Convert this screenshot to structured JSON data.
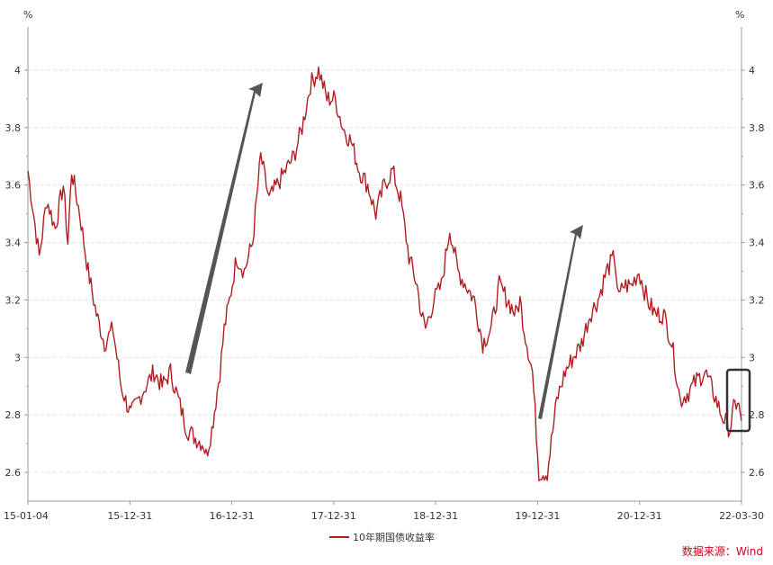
{
  "chart_data": {
    "type": "line",
    "unit_left": "%",
    "unit_right": "%",
    "x_tick_labels": [
      "15-01-04",
      "15-12-31",
      "16-12-31",
      "17-12-31",
      "18-12-31",
      "19-12-31",
      "20-12-31",
      "22-03-30"
    ],
    "y_ticks": [
      2.6,
      2.8,
      3,
      3.2,
      3.4,
      3.6,
      3.8,
      4
    ],
    "y_tick_labels": [
      "2.6",
      "2.8",
      "3",
      "3.2",
      "3.4",
      "3.6",
      "3.8",
      "4"
    ],
    "ylim": [
      2.5,
      4.15
    ],
    "grid": true,
    "legend_position": "bottom-center",
    "series": [
      {
        "name": "10年期国债收益率",
        "color": "#b01e23",
        "x": [
          "2015-01-04",
          "2015-02-15",
          "2015-03-15",
          "2015-04-15",
          "2015-05-15",
          "2015-06-01",
          "2015-06-15",
          "2015-07-15",
          "2015-08-15",
          "2015-09-15",
          "2015-10-15",
          "2015-11-15",
          "2015-12-15",
          "2016-01-01",
          "2016-01-20",
          "2016-02-15",
          "2016-03-15",
          "2016-04-15",
          "2016-05-15",
          "2016-06-15",
          "2016-07-15",
          "2016-08-15",
          "2016-09-15",
          "2016-10-15",
          "2016-10-25",
          "2016-11-15",
          "2016-12-15",
          "2016-12-31",
          "2017-01-20",
          "2017-02-15",
          "2017-03-15",
          "2017-04-15",
          "2017-05-15",
          "2017-06-15",
          "2017-07-15",
          "2017-08-15",
          "2017-09-15",
          "2017-10-15",
          "2017-11-15",
          "2017-12-15",
          "2017-12-31",
          "2018-01-15",
          "2018-02-15",
          "2018-03-15",
          "2018-04-15",
          "2018-05-15",
          "2018-06-15",
          "2018-07-15",
          "2018-08-15",
          "2018-09-15",
          "2018-10-15",
          "2018-11-15",
          "2018-12-15",
          "2018-12-31",
          "2019-01-15",
          "2019-02-15",
          "2019-03-15",
          "2019-04-15",
          "2019-05-15",
          "2019-06-15",
          "2019-07-15",
          "2019-08-15",
          "2019-09-15",
          "2019-10-15",
          "2019-11-15",
          "2019-12-15",
          "2019-12-31",
          "2020-01-15",
          "2020-02-15",
          "2020-03-10",
          "2020-04-10",
          "2020-05-15",
          "2020-06-15",
          "2020-07-15",
          "2020-08-15",
          "2020-09-15",
          "2020-10-15",
          "2020-11-15",
          "2020-12-15",
          "2020-12-31",
          "2021-01-15",
          "2021-02-15",
          "2021-03-15",
          "2021-04-15",
          "2021-05-15",
          "2021-06-15",
          "2021-07-15",
          "2021-08-15",
          "2021-09-15",
          "2021-10-15",
          "2021-11-15",
          "2021-12-15",
          "2022-01-15",
          "2022-02-15",
          "2022-03-01",
          "2022-03-15",
          "2022-03-30"
        ],
        "y": [
          3.65,
          3.35,
          3.55,
          3.45,
          3.6,
          3.4,
          3.65,
          3.5,
          3.3,
          3.15,
          3.05,
          3.1,
          2.9,
          2.85,
          2.8,
          2.85,
          2.9,
          2.95,
          2.9,
          2.95,
          2.85,
          2.75,
          2.72,
          2.7,
          2.66,
          2.75,
          2.95,
          3.1,
          3.2,
          3.35,
          3.3,
          3.4,
          3.7,
          3.55,
          3.6,
          3.65,
          3.7,
          3.8,
          3.95,
          4.0,
          3.95,
          3.9,
          3.9,
          3.8,
          3.75,
          3.65,
          3.6,
          3.5,
          3.6,
          3.65,
          3.55,
          3.35,
          3.25,
          3.15,
          3.1,
          3.2,
          3.25,
          3.45,
          3.3,
          3.25,
          3.2,
          3.05,
          3.1,
          3.25,
          3.2,
          3.15,
          3.2,
          3.1,
          2.95,
          2.6,
          2.6,
          2.85,
          2.95,
          3.0,
          3.05,
          3.15,
          3.2,
          3.3,
          3.35,
          3.2,
          3.25,
          3.25,
          3.3,
          3.2,
          3.15,
          3.15,
          3.05,
          2.85,
          2.88,
          2.92,
          2.95,
          2.88,
          2.8,
          2.75,
          2.82,
          2.85,
          2.78
        ]
      }
    ],
    "annotations": [
      "arrow-up-1",
      "arrow-up-2",
      "highlight-box-latest"
    ]
  },
  "source_text": "数据来源：Wind"
}
